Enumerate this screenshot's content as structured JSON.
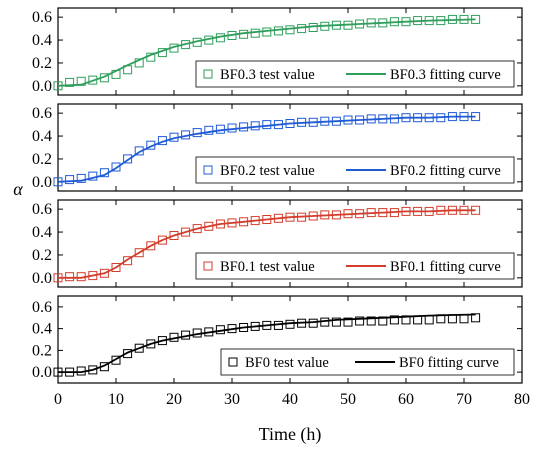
{
  "chart_data": {
    "type": "scatter",
    "shared_x": {
      "label": "Time (h)",
      "range": [
        0,
        80
      ],
      "ticks": [
        0,
        10,
        20,
        30,
        40,
        50,
        60,
        70,
        80
      ]
    },
    "y_label": "α",
    "legend_position": "bottom-right",
    "panels": [
      {
        "name": "BF0.3",
        "color": "#2e9e5b",
        "ylim": [
          -0.08,
          0.68
        ],
        "yticks": [
          "0.0",
          "0.2",
          "0.4",
          "0.6"
        ],
        "test_label": "BF0.3 test value",
        "fit_label": "BF0.3 fitting curve",
        "test_x": [
          0,
          2,
          4,
          6,
          8,
          10,
          12,
          14,
          16,
          18,
          20,
          22,
          24,
          26,
          28,
          30,
          32,
          34,
          36,
          38,
          40,
          42,
          44,
          46,
          48,
          50,
          52,
          54,
          56,
          58,
          60,
          62,
          64,
          66,
          68,
          70,
          72
        ],
        "test_y": [
          0.0,
          0.03,
          0.04,
          0.05,
          0.07,
          0.1,
          0.14,
          0.2,
          0.25,
          0.29,
          0.33,
          0.36,
          0.38,
          0.4,
          0.42,
          0.44,
          0.45,
          0.46,
          0.47,
          0.48,
          0.49,
          0.5,
          0.51,
          0.52,
          0.53,
          0.53,
          0.54,
          0.55,
          0.55,
          0.56,
          0.56,
          0.57,
          0.57,
          0.57,
          0.58,
          0.58,
          0.58
        ],
        "fit_x": [
          0,
          4,
          8,
          12,
          16,
          20,
          24,
          28,
          32,
          36,
          40,
          44,
          48,
          52,
          56,
          60,
          64,
          68,
          72
        ],
        "fit_y": [
          0.0,
          0.01,
          0.08,
          0.18,
          0.27,
          0.34,
          0.39,
          0.43,
          0.46,
          0.48,
          0.5,
          0.52,
          0.53,
          0.54,
          0.55,
          0.56,
          0.57,
          0.575,
          0.58
        ]
      },
      {
        "name": "BF0.2",
        "color": "#1f5bd6",
        "ylim": [
          -0.08,
          0.68
        ],
        "yticks": [
          "0.0",
          "0.2",
          "0.4",
          "0.6"
        ],
        "test_label": "BF0.2 test value",
        "fit_label": "BF0.2 fitting curve",
        "test_x": [
          0,
          2,
          4,
          6,
          8,
          10,
          12,
          14,
          16,
          18,
          20,
          22,
          24,
          26,
          28,
          30,
          32,
          34,
          36,
          38,
          40,
          42,
          44,
          46,
          48,
          50,
          52,
          54,
          56,
          58,
          60,
          62,
          64,
          66,
          68,
          70,
          72
        ],
        "test_y": [
          0.0,
          0.02,
          0.03,
          0.05,
          0.08,
          0.13,
          0.2,
          0.27,
          0.32,
          0.36,
          0.39,
          0.41,
          0.43,
          0.45,
          0.46,
          0.47,
          0.48,
          0.49,
          0.5,
          0.5,
          0.51,
          0.52,
          0.52,
          0.53,
          0.53,
          0.54,
          0.54,
          0.55,
          0.55,
          0.55,
          0.56,
          0.56,
          0.56,
          0.56,
          0.57,
          0.57,
          0.57
        ],
        "fit_x": [
          0,
          4,
          8,
          10,
          12,
          14,
          16,
          18,
          20,
          24,
          28,
          32,
          36,
          40,
          44,
          48,
          52,
          56,
          60,
          64,
          68,
          72
        ],
        "fit_y": [
          0.0,
          0.01,
          0.06,
          0.12,
          0.19,
          0.26,
          0.31,
          0.35,
          0.38,
          0.42,
          0.45,
          0.47,
          0.49,
          0.51,
          0.52,
          0.53,
          0.54,
          0.55,
          0.56,
          0.56,
          0.57,
          0.57
        ]
      },
      {
        "name": "BF0.1",
        "color": "#d43c2c",
        "ylim": [
          -0.08,
          0.68
        ],
        "yticks": [
          "0.0",
          "0.2",
          "0.4",
          "0.6"
        ],
        "test_label": "BF0.1 test value",
        "fit_label": "BF0.1 fitting curve",
        "test_x": [
          0,
          2,
          4,
          6,
          8,
          10,
          12,
          14,
          16,
          18,
          20,
          22,
          24,
          26,
          28,
          30,
          32,
          34,
          36,
          38,
          40,
          42,
          44,
          46,
          48,
          50,
          52,
          54,
          56,
          58,
          60,
          62,
          64,
          66,
          68,
          70,
          72
        ],
        "test_y": [
          0.0,
          0.01,
          0.01,
          0.02,
          0.04,
          0.09,
          0.15,
          0.22,
          0.28,
          0.33,
          0.37,
          0.4,
          0.43,
          0.45,
          0.47,
          0.48,
          0.49,
          0.5,
          0.51,
          0.52,
          0.53,
          0.53,
          0.54,
          0.55,
          0.55,
          0.56,
          0.56,
          0.57,
          0.57,
          0.57,
          0.58,
          0.58,
          0.58,
          0.59,
          0.59,
          0.59,
          0.59
        ],
        "fit_x": [
          0,
          4,
          8,
          10,
          12,
          14,
          16,
          18,
          20,
          24,
          28,
          32,
          36,
          40,
          44,
          48,
          52,
          56,
          60,
          64,
          68,
          72
        ],
        "fit_y": [
          0.0,
          0.0,
          0.04,
          0.09,
          0.16,
          0.22,
          0.28,
          0.33,
          0.37,
          0.43,
          0.47,
          0.49,
          0.51,
          0.53,
          0.54,
          0.55,
          0.56,
          0.57,
          0.58,
          0.58,
          0.59,
          0.59
        ]
      },
      {
        "name": "BF0",
        "color": "#000000",
        "ylim": [
          -0.1,
          0.7
        ],
        "yticks": [
          "0.0",
          "0.2",
          "0.4",
          "0.6"
        ],
        "test_label": "BF0 test value",
        "fit_label": "BF0 fitting curve",
        "test_x": [
          0,
          2,
          4,
          6,
          8,
          10,
          12,
          14,
          16,
          18,
          20,
          22,
          24,
          26,
          28,
          30,
          32,
          34,
          36,
          38,
          40,
          42,
          44,
          46,
          48,
          50,
          52,
          54,
          56,
          58,
          60,
          62,
          64,
          66,
          68,
          70,
          72
        ],
        "test_y": [
          0.0,
          0.0,
          0.01,
          0.02,
          0.05,
          0.11,
          0.17,
          0.22,
          0.26,
          0.29,
          0.32,
          0.34,
          0.36,
          0.37,
          0.39,
          0.4,
          0.41,
          0.42,
          0.43,
          0.43,
          0.44,
          0.45,
          0.45,
          0.46,
          0.46,
          0.46,
          0.47,
          0.47,
          0.47,
          0.48,
          0.48,
          0.48,
          0.48,
          0.49,
          0.49,
          0.49,
          0.5
        ],
        "fit_x": [
          0,
          4,
          6,
          8,
          10,
          12,
          14,
          16,
          18,
          20,
          24,
          28,
          32,
          36,
          40,
          44,
          48,
          52,
          56,
          60,
          64,
          68,
          72
        ],
        "fit_y": [
          0.0,
          0.0,
          0.02,
          0.06,
          0.12,
          0.18,
          0.22,
          0.26,
          0.29,
          0.31,
          0.35,
          0.38,
          0.41,
          0.43,
          0.45,
          0.46,
          0.48,
          0.49,
          0.5,
          0.51,
          0.52,
          0.525,
          0.53
        ]
      }
    ]
  }
}
